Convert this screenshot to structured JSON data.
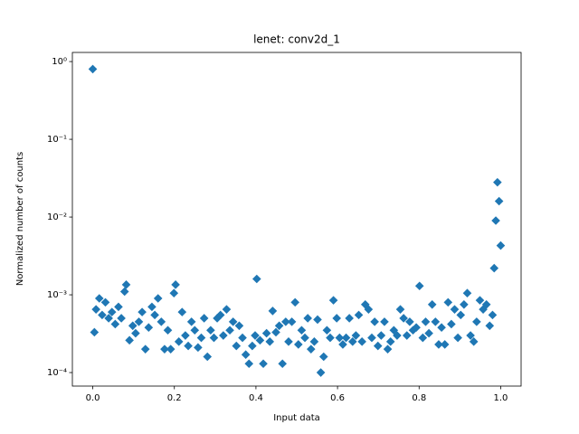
{
  "chart_data": {
    "type": "scatter",
    "title": "lenet: conv2d_1",
    "xlabel": "Input data",
    "ylabel": "Normalized number of counts",
    "color": "#1f77b4",
    "marker": "diamond",
    "yscale": "log",
    "xlim": [
      -0.05,
      1.05
    ],
    "ylim": [
      6.7e-05,
      1.31
    ],
    "xticks": [
      {
        "value": 0,
        "label": "0.0"
      },
      0.2,
      0.4,
      0.6,
      0.8,
      {
        "value": 1,
        "label": "1.0"
      }
    ],
    "yticks": [
      {
        "value": 0.0001,
        "label": "10⁻⁴"
      },
      {
        "value": 0.001,
        "label": "10⁻³"
      },
      {
        "value": 0.01,
        "label": "10⁻²"
      },
      {
        "value": 0.1,
        "label": "10⁻¹"
      },
      {
        "value": 1,
        "label": "10⁰"
      }
    ],
    "x": [
      0,
      0.004,
      0.008,
      0.016,
      0.023,
      0.031,
      0.039,
      0.047,
      0.055,
      0.063,
      0.07,
      0.078,
      0.082,
      0.09,
      0.098,
      0.105,
      0.113,
      0.121,
      0.129,
      0.137,
      0.145,
      0.152,
      0.16,
      0.168,
      0.176,
      0.184,
      0.191,
      0.199,
      0.203,
      0.211,
      0.219,
      0.227,
      0.234,
      0.242,
      0.25,
      0.258,
      0.266,
      0.273,
      0.281,
      0.289,
      0.297,
      0.305,
      0.313,
      0.32,
      0.328,
      0.336,
      0.344,
      0.352,
      0.359,
      0.367,
      0.375,
      0.383,
      0.391,
      0.398,
      0.402,
      0.41,
      0.418,
      0.426,
      0.434,
      0.441,
      0.449,
      0.457,
      0.465,
      0.473,
      0.48,
      0.488,
      0.496,
      0.504,
      0.512,
      0.52,
      0.527,
      0.535,
      0.543,
      0.551,
      0.559,
      0.566,
      0.574,
      0.582,
      0.59,
      0.598,
      0.605,
      0.613,
      0.621,
      0.629,
      0.637,
      0.645,
      0.652,
      0.66,
      0.668,
      0.676,
      0.684,
      0.691,
      0.699,
      0.707,
      0.715,
      0.723,
      0.73,
      0.738,
      0.746,
      0.754,
      0.762,
      0.77,
      0.777,
      0.785,
      0.793,
      0.801,
      0.809,
      0.816,
      0.824,
      0.832,
      0.84,
      0.848,
      0.855,
      0.863,
      0.871,
      0.879,
      0.887,
      0.895,
      0.902,
      0.91,
      0.918,
      0.926,
      0.934,
      0.941,
      0.949,
      0.957,
      0.965,
      0.973,
      0.98,
      0.984,
      0.988,
      0.992,
      0.996,
      1.0
    ],
    "values": [
      0.8,
      0.00033,
      0.00065,
      0.0009,
      0.00055,
      0.0008,
      0.0005,
      0.0006,
      0.00042,
      0.0007,
      0.0005,
      0.0011,
      0.00135,
      0.00026,
      0.0004,
      0.00032,
      0.00045,
      0.0006,
      0.0002,
      0.00038,
      0.0007,
      0.00055,
      0.0009,
      0.00045,
      0.0002,
      0.00035,
      0.0002,
      0.00105,
      0.00135,
      0.00025,
      0.0006,
      0.0003,
      0.00022,
      0.00045,
      0.00035,
      0.00021,
      0.00028,
      0.0005,
      0.00016,
      0.00035,
      0.00028,
      0.0005,
      0.00055,
      0.0003,
      0.00065,
      0.00035,
      0.00045,
      0.00022,
      0.0004,
      0.00028,
      0.00017,
      0.00013,
      0.00022,
      0.0003,
      0.0016,
      0.00026,
      0.00013,
      0.00032,
      0.00025,
      0.00062,
      0.00033,
      0.0004,
      0.00013,
      0.00045,
      0.00025,
      0.00045,
      0.0008,
      0.00023,
      0.00035,
      0.00028,
      0.0005,
      0.0002,
      0.00025,
      0.00048,
      0.0001,
      0.00016,
      0.00035,
      0.00028,
      0.00085,
      0.0005,
      0.00028,
      0.00023,
      0.00028,
      0.0005,
      0.00025,
      0.0003,
      0.00055,
      0.00025,
      0.00075,
      0.00065,
      0.00028,
      0.00045,
      0.00022,
      0.0003,
      0.00045,
      0.0002,
      0.00025,
      0.00035,
      0.0003,
      0.00065,
      0.0005,
      0.0003,
      0.00045,
      0.00035,
      0.00038,
      0.0013,
      0.00028,
      0.00045,
      0.00032,
      0.00075,
      0.00045,
      0.00023,
      0.00038,
      0.00023,
      0.0008,
      0.00042,
      0.00065,
      0.00028,
      0.00055,
      0.00075,
      0.00105,
      0.0003,
      0.00025,
      0.00045,
      0.00085,
      0.00065,
      0.00075,
      0.0004,
      0.00055,
      0.0022,
      0.009,
      0.028,
      0.016,
      0.0043
    ]
  }
}
